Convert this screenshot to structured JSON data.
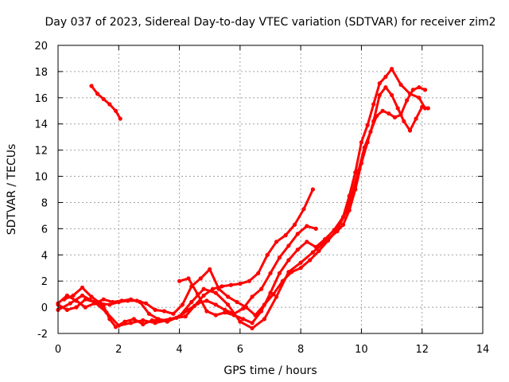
{
  "chart_data": {
    "type": "line",
    "title": "Day 037 of 2023, Sidereal Day-to-day VTEC variation (SDTVAR) for receiver zim2",
    "xlabel": "GPS time / hours",
    "ylabel": "SDTVAR / TECUs",
    "xlim": [
      0,
      14
    ],
    "ylim": [
      -2,
      20
    ],
    "xticks": [
      0,
      2,
      4,
      6,
      8,
      10,
      12,
      14
    ],
    "yticks": [
      -2,
      0,
      2,
      4,
      6,
      8,
      10,
      12,
      14,
      16,
      18,
      20
    ],
    "grid": true,
    "color": "#ff0000",
    "series": [
      {
        "name": "segment-1",
        "x": [
          1.1,
          1.3,
          1.5,
          1.7,
          1.9,
          2.05
        ],
        "y": [
          16.9,
          16.3,
          15.9,
          15.5,
          15.0,
          14.4
        ]
      },
      {
        "name": "segment-2",
        "x": [
          0.0,
          0.3,
          0.6,
          0.9,
          1.2,
          1.5,
          1.8,
          2.1,
          2.4,
          2.7,
          3.0,
          3.3,
          3.6,
          3.9,
          4.2,
          4.5,
          4.8,
          5.1,
          5.4,
          5.7,
          6.0,
          6.3,
          6.6,
          6.9,
          7.2,
          7.5,
          7.8,
          8.1,
          8.4
        ],
        "y": [
          0.3,
          0.9,
          0.5,
          0.0,
          0.3,
          0.6,
          0.4,
          0.5,
          0.6,
          0.4,
          -0.5,
          -0.9,
          -1.1,
          -0.8,
          -0.7,
          0.1,
          0.9,
          1.4,
          1.6,
          1.7,
          1.8,
          2.0,
          2.6,
          4.0,
          5.0,
          5.5,
          6.3,
          7.5,
          9.0
        ]
      },
      {
        "name": "segment-3",
        "x": [
          0.0,
          0.3,
          0.6,
          0.9,
          1.2,
          1.5,
          1.7,
          1.9,
          2.2,
          2.5,
          2.8,
          3.1,
          3.4,
          3.7,
          4.0,
          4.3,
          4.6,
          4.9,
          5.2,
          5.5,
          5.8,
          6.1,
          6.4,
          6.7,
          7.0,
          7.3,
          7.6,
          7.9,
          8.2,
          8.5
        ],
        "y": [
          0.2,
          -0.2,
          0.0,
          0.6,
          0.4,
          0.1,
          -0.9,
          -1.5,
          -1.1,
          -0.9,
          -1.3,
          -1.0,
          -1.0,
          -0.9,
          -0.7,
          -0.2,
          0.3,
          0.5,
          0.2,
          -0.2,
          -0.5,
          -0.1,
          0.8,
          1.4,
          2.6,
          3.8,
          4.7,
          5.6,
          6.2,
          6.0
        ]
      },
      {
        "name": "segment-4",
        "x": [
          0.0,
          0.4,
          0.8,
          1.2,
          1.6,
          2.0,
          2.4,
          2.8,
          3.2,
          3.6,
          4.0,
          4.4,
          4.8,
          5.2,
          5.6,
          6.0,
          6.4,
          6.8,
          7.2,
          7.6,
          8.0,
          8.4,
          8.8,
          9.2,
          9.4,
          9.6,
          9.8,
          10.0,
          10.2,
          10.4,
          10.6,
          10.8,
          11.0,
          11.2,
          11.4,
          11.6,
          11.8,
          12.0,
          12.2
        ],
        "y": [
          -0.2,
          0.3,
          0.9,
          0.4,
          -0.4,
          -1.4,
          -1.2,
          -1.0,
          -1.2,
          -1.0,
          -0.7,
          0.4,
          1.4,
          1.1,
          0.2,
          -1.1,
          -1.6,
          -0.9,
          0.8,
          2.7,
          3.4,
          4.2,
          5.0,
          5.8,
          6.3,
          7.4,
          9.0,
          11.0,
          12.6,
          14.2,
          16.2,
          16.8,
          16.2,
          15.2,
          14.2,
          13.5,
          14.4,
          15.3,
          15.2
        ]
      },
      {
        "name": "segment-5",
        "x": [
          0.2,
          0.5,
          0.8,
          1.1,
          1.4,
          1.7,
          2.0,
          2.3,
          2.6,
          2.9,
          3.2,
          3.5,
          3.8,
          4.1,
          4.4,
          4.7,
          5.0,
          5.3,
          5.6,
          5.9,
          6.2,
          6.5,
          6.8,
          7.1,
          7.4,
          7.7,
          8.0,
          8.3,
          8.6,
          8.9,
          9.2,
          9.5,
          9.7,
          9.9,
          10.1,
          10.3,
          10.5,
          10.7,
          10.9,
          11.1,
          11.3,
          11.5,
          11.7,
          11.9,
          12.1
        ],
        "y": [
          0.6,
          0.9,
          1.5,
          0.8,
          0.3,
          0.2,
          0.4,
          0.5,
          0.5,
          0.3,
          -0.2,
          -0.3,
          -0.5,
          0.2,
          1.6,
          2.2,
          2.9,
          1.4,
          0.8,
          0.4,
          0.0,
          -0.6,
          0.2,
          1.0,
          2.0,
          2.7,
          3.0,
          3.6,
          4.3,
          5.1,
          5.9,
          7.3,
          8.7,
          10.4,
          12.2,
          13.4,
          14.6,
          15.0,
          14.8,
          14.5,
          14.7,
          15.8,
          16.6,
          16.8,
          16.6
        ]
      },
      {
        "name": "segment-6",
        "x": [
          4.0,
          4.3,
          4.6,
          4.9,
          5.2,
          5.5,
          5.8,
          6.1,
          6.4,
          6.7,
          7.0,
          7.3,
          7.6,
          7.9,
          8.2,
          8.5,
          8.8,
          9.1,
          9.4,
          9.6,
          9.8,
          10.0,
          10.2,
          10.4,
          10.6,
          10.8,
          11.0,
          11.3,
          11.6,
          11.9,
          12.1
        ],
        "y": [
          2.0,
          2.2,
          1.0,
          -0.3,
          -0.6,
          -0.4,
          -0.6,
          -0.9,
          -1.2,
          -0.3,
          1.1,
          2.6,
          3.6,
          4.4,
          5.0,
          4.6,
          5.2,
          5.9,
          6.9,
          8.5,
          10.3,
          12.6,
          13.9,
          15.5,
          17.1,
          17.6,
          18.2,
          17.0,
          16.3,
          16.0,
          15.2
        ]
      }
    ]
  }
}
